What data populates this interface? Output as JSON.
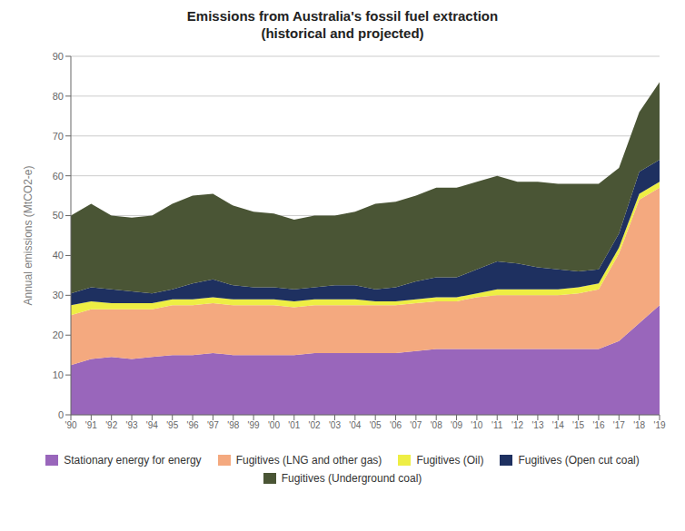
{
  "chart_data": {
    "type": "area",
    "stacked": true,
    "title": "Emissions from Australia's fossil fuel extraction\n(historical and projected)",
    "y_label": "Annual emissions (MtCO2-e)",
    "x": [
      1990,
      1991,
      1992,
      1993,
      1994,
      1995,
      1996,
      1997,
      1998,
      1999,
      2000,
      2001,
      2002,
      2003,
      2004,
      2005,
      2006,
      2007,
      2008,
      2009,
      2010,
      2011,
      2012,
      2013,
      2014,
      2015,
      2016,
      2017,
      2018,
      2019
    ],
    "xlim": [
      1990,
      2019
    ],
    "xticks": [
      {
        "value": 1990,
        "label": "'90"
      },
      {
        "value": 1991,
        "label": "'91"
      },
      {
        "value": 1992,
        "label": "'92"
      },
      {
        "value": 1993,
        "label": "'93"
      },
      {
        "value": 1994,
        "label": "'94"
      },
      {
        "value": 1995,
        "label": "'95"
      },
      {
        "value": 1996,
        "label": "'96"
      },
      {
        "value": 1997,
        "label": "'97"
      },
      {
        "value": 1998,
        "label": "'98"
      },
      {
        "value": 1999,
        "label": "'99"
      },
      {
        "value": 2000,
        "label": "'00"
      },
      {
        "value": 2001,
        "label": "'01"
      },
      {
        "value": 2002,
        "label": "'02"
      },
      {
        "value": 2003,
        "label": "'03"
      },
      {
        "value": 2004,
        "label": "'04"
      },
      {
        "value": 2005,
        "label": "'05"
      },
      {
        "value": 2006,
        "label": "'06"
      },
      {
        "value": 2007,
        "label": "'07"
      },
      {
        "value": 2008,
        "label": "'08"
      },
      {
        "value": 2009,
        "label": "'09"
      },
      {
        "value": 2010,
        "label": "'10"
      },
      {
        "value": 2011,
        "label": "'11"
      },
      {
        "value": 2012,
        "label": "'12"
      },
      {
        "value": 2013,
        "label": "'13"
      },
      {
        "value": 2014,
        "label": "'14"
      },
      {
        "value": 2015,
        "label": "'15"
      },
      {
        "value": 2016,
        "label": "'16"
      },
      {
        "value": 2017,
        "label": "'17"
      },
      {
        "value": 2018,
        "label": "'18"
      },
      {
        "value": 2019,
        "label": "'19"
      }
    ],
    "ylim": [
      0,
      90
    ],
    "yticks": [
      0,
      10,
      20,
      30,
      40,
      50,
      60,
      70,
      80,
      90
    ],
    "grid": true,
    "legend": "bottom",
    "series": [
      {
        "name": "Stationary energy for energy",
        "color": "#9966bb",
        "values": [
          12.5,
          14.0,
          14.5,
          14.0,
          14.5,
          15.0,
          15.0,
          15.5,
          15.0,
          15.0,
          15.0,
          15.0,
          15.5,
          15.5,
          15.5,
          15.5,
          15.5,
          16.0,
          16.5,
          16.5,
          16.5,
          16.5,
          16.5,
          16.5,
          16.5,
          16.5,
          16.5,
          18.5,
          23.0,
          27.5
        ]
      },
      {
        "name": "Fugitives (LNG and other gas)",
        "color": "#f4a97f",
        "values": [
          12.5,
          12.5,
          12.0,
          12.5,
          12.0,
          12.5,
          12.5,
          12.5,
          12.5,
          12.5,
          12.5,
          12.0,
          12.0,
          12.0,
          12.0,
          12.0,
          12.0,
          12.0,
          12.0,
          12.0,
          13.0,
          13.5,
          13.5,
          13.5,
          13.5,
          14.0,
          15.0,
          22.0,
          31.0,
          29.5
        ]
      },
      {
        "name": "Fugitives (Oil)",
        "color": "#eeee44",
        "values": [
          2.5,
          2.0,
          1.5,
          1.5,
          1.5,
          1.5,
          1.5,
          1.5,
          1.5,
          1.5,
          1.5,
          1.5,
          1.5,
          1.5,
          1.5,
          1.0,
          1.0,
          1.0,
          1.0,
          1.0,
          1.0,
          1.5,
          1.5,
          1.5,
          1.5,
          1.5,
          1.5,
          1.5,
          1.5,
          1.5
        ]
      },
      {
        "name": "Fugitives (Open cut coal)",
        "color": "#1e3060",
        "values": [
          3.0,
          3.5,
          3.5,
          3.0,
          2.5,
          2.5,
          4.0,
          4.5,
          3.5,
          3.0,
          3.0,
          3.0,
          3.0,
          3.5,
          3.5,
          3.0,
          3.5,
          4.5,
          5.0,
          5.0,
          6.0,
          7.0,
          6.5,
          5.5,
          5.0,
          4.0,
          3.5,
          3.5,
          5.5,
          5.5
        ]
      },
      {
        "name": "Fugitives (Underground coal)",
        "color": "#4a5535",
        "values": [
          19.5,
          21.0,
          18.5,
          18.5,
          19.5,
          21.5,
          22.0,
          21.5,
          20.0,
          19.0,
          18.5,
          17.5,
          18.0,
          17.5,
          18.5,
          21.5,
          21.5,
          21.5,
          22.5,
          22.5,
          22.0,
          21.5,
          20.5,
          21.5,
          21.5,
          22.0,
          21.5,
          16.5,
          15.0,
          19.5
        ]
      }
    ]
  }
}
